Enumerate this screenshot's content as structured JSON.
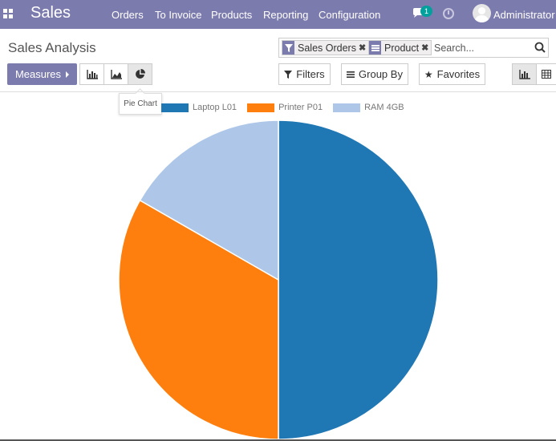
{
  "navbar": {
    "app_name": "Sales",
    "menu": [
      "Orders",
      "To Invoice",
      "Products",
      "Reporting",
      "Configuration"
    ],
    "chat_count": "1",
    "user_name": "Administrator",
    "color": "#7c7bad"
  },
  "control_panel": {
    "title": "Sales Analysis",
    "facets": [
      {
        "icon": "filter-icon",
        "label": "Sales Orders"
      },
      {
        "icon": "groupby-icon",
        "label": "Product"
      }
    ],
    "search_placeholder": "Search...",
    "measures_label": "Measures",
    "view_modes": [
      "bar-chart-icon",
      "line-chart-icon",
      "pie-chart-icon"
    ],
    "active_view_mode": "pie-chart-icon",
    "tooltip": "Pie Chart",
    "filters_label": "Filters",
    "groupby_label": "Group By",
    "favorites_label": "Favorites",
    "view_switcher": [
      "graph-view-icon",
      "pivot-view-icon"
    ]
  },
  "chart_data": {
    "type": "pie",
    "categories": [
      "Laptop L01",
      "Printer P01",
      "RAM 4GB"
    ],
    "values": [
      50,
      33.3,
      16.7
    ],
    "colors": [
      "#1f77b4",
      "#ff7f0e",
      "#aec7e8"
    ],
    "legend_position": "top-left"
  }
}
